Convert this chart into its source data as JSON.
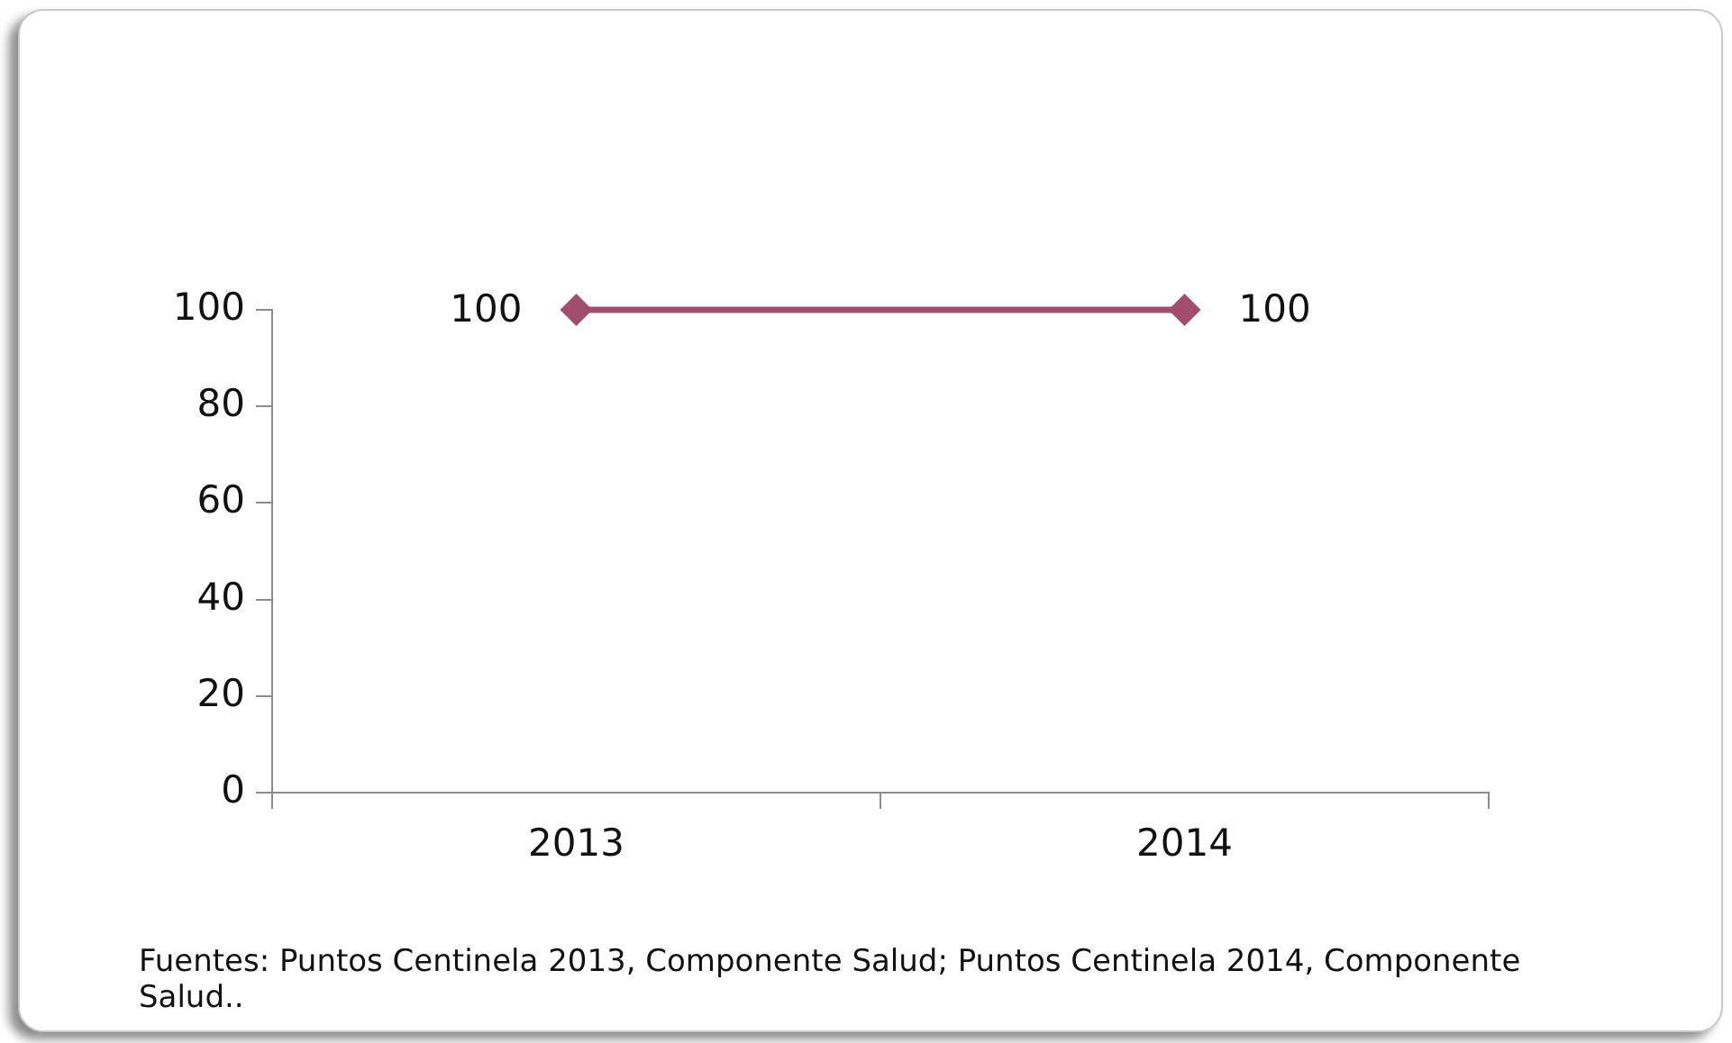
{
  "chart_data": {
    "type": "line",
    "categories": [
      "2013",
      "2014"
    ],
    "values": [
      100,
      100
    ],
    "color": "#a34d6d",
    "ylim": [
      0,
      100
    ],
    "yticks": [
      0,
      20,
      40,
      60,
      80,
      100
    ],
    "data_labels": true,
    "marker": "diamond",
    "line_style": "solid",
    "annotations": [
      "Fuentes: Puntos Centinela 2013, Componente Salud; Puntos Centinela 2014, Componente Salud.."
    ]
  }
}
